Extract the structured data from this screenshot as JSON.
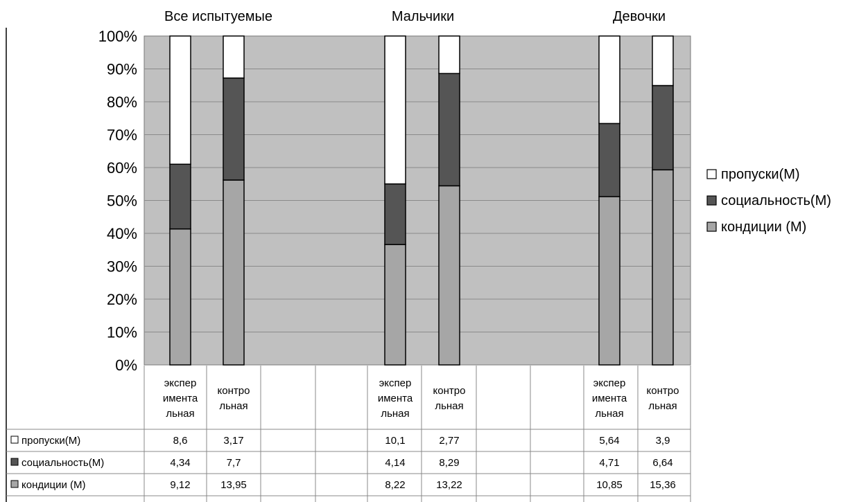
{
  "chart_data": {
    "type": "bar",
    "stacked": "percent",
    "groups": [
      {
        "title": "Все испытуемые",
        "categories": [
          "экспер\nимента\nльная",
          "контро\nльная"
        ]
      },
      {
        "title": "Мальчики",
        "categories": [
          "экспер\nимента\nльная",
          "контро\nльная"
        ]
      },
      {
        "title": "Девочки",
        "categories": [
          "экспер\nимента\nльная",
          "контро\nльная"
        ]
      }
    ],
    "series": [
      {
        "name": "кондиции (М)",
        "color": "#a6a6a6",
        "values": [
          "9,12",
          "13,95",
          "8,22",
          "13,22",
          "10,85",
          "15,36"
        ]
      },
      {
        "name": "социальность(М)",
        "color": "#555555",
        "values": [
          "4,34",
          "7,7",
          "4,14",
          "8,29",
          "4,71",
          "6,64"
        ]
      },
      {
        "name": "пропуски(М)",
        "color": "#ffffff",
        "values": [
          "8,6",
          "3,17",
          "10,1",
          "2,77",
          "5,64",
          "3,9"
        ]
      }
    ],
    "y_ticks": [
      "0%",
      "10%",
      "20%",
      "30%",
      "40%",
      "50%",
      "60%",
      "70%",
      "80%",
      "90%",
      "100%"
    ],
    "ylim": [
      0,
      100
    ],
    "legend_position": "right",
    "grid": true,
    "plot_background": "#c0c0c0",
    "data_table": true
  }
}
